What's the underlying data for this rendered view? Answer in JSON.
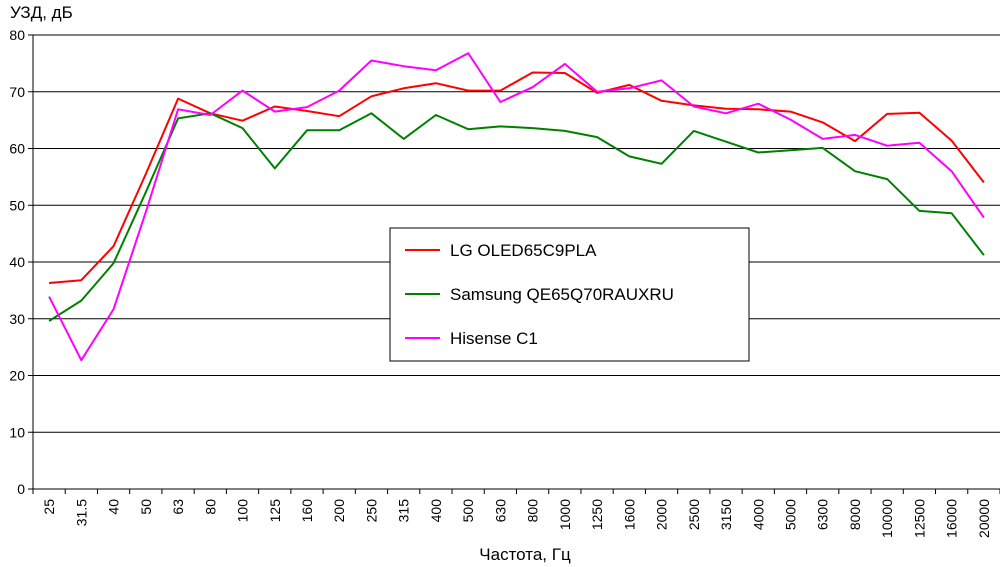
{
  "chart_data": {
    "type": "line",
    "ylabel": "УЗД, дБ",
    "xlabel": "Частота, Гц",
    "ylim": [
      0,
      80
    ],
    "yticks": [
      0,
      10,
      20,
      30,
      40,
      50,
      60,
      70,
      80
    ],
    "grid": "horizontal",
    "legend_position": "center",
    "categories": [
      "25",
      "31.5",
      "40",
      "50",
      "63",
      "80",
      "100",
      "125",
      "160",
      "200",
      "250",
      "315",
      "400",
      "500",
      "630",
      "800",
      "1000",
      "1250",
      "1600",
      "2000",
      "2500",
      "3150",
      "4000",
      "5000",
      "6300",
      "8000",
      "10000",
      "12500",
      "16000",
      "20000"
    ],
    "series": [
      {
        "name": "LG OLED65C9PLA",
        "color": "#ff0000",
        "values": [
          36.3,
          36.8,
          42.8,
          55.5,
          68.8,
          66.2,
          64.9,
          67.4,
          66.6,
          65.7,
          69.2,
          70.6,
          71.5,
          70.2,
          70.2,
          73.4,
          73.3,
          69.8,
          71.2,
          68.4,
          67.6,
          67.0,
          66.9,
          66.5,
          64.6,
          61.3,
          66.1,
          66.3,
          61.4,
          54.0
        ]
      },
      {
        "name": "Samsung QE65Q70RAUXRU",
        "color": "#008000",
        "values": [
          29.6,
          33.2,
          39.8,
          52.3,
          65.3,
          66.2,
          63.6,
          56.5,
          63.2,
          63.2,
          66.2,
          61.7,
          65.9,
          63.4,
          63.9,
          63.6,
          63.1,
          62.0,
          58.6,
          57.3,
          63.1,
          61.2,
          59.3,
          59.7,
          60.1,
          56.0,
          54.6,
          49.0,
          48.6,
          41.2
        ]
      },
      {
        "name": "Hisense C1",
        "color": "#ff00ff",
        "values": [
          33.9,
          22.7,
          31.7,
          48.8,
          66.9,
          65.9,
          70.2,
          66.5,
          67.3,
          70.2,
          75.5,
          74.5,
          73.8,
          76.8,
          68.2,
          70.8,
          74.9,
          70.0,
          70.6,
          72.0,
          67.4,
          66.2,
          67.9,
          65.1,
          61.7,
          62.4,
          60.5,
          61.0,
          56.0,
          47.8
        ]
      }
    ]
  }
}
